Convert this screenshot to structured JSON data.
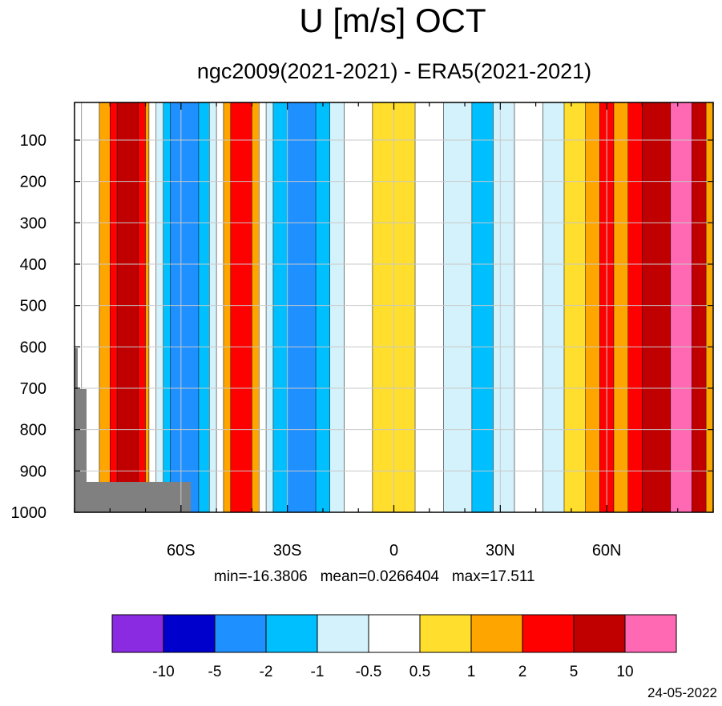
{
  "title": "U [m/s] OCT",
  "subtitle": "ngc2009(2021-2021) - ERA5(2021-2021)",
  "stats": {
    "min": "min=-16.3806",
    "mean": "mean=0.0266404",
    "max": "max=17.511"
  },
  "date": "24-05-2022",
  "chart_data": {
    "type": "heatmap",
    "title": "U [m/s] OCT",
    "subtitle": "ngc2009(2021-2021) - ERA5(2021-2021)",
    "y_axis": {
      "ticks": [
        100,
        200,
        300,
        400,
        500,
        600,
        700,
        800,
        900,
        1000
      ],
      "tick_labels": [
        "100",
        "200",
        "300",
        "400",
        "500",
        "600",
        "700",
        "800",
        "900",
        "1000"
      ],
      "range": [
        10,
        1000
      ],
      "reversed": true
    },
    "x_axis": {
      "ticks": [
        -60,
        -30,
        0,
        30,
        60
      ],
      "tick_labels": [
        "60S",
        "30S",
        "0",
        "30N",
        "60N"
      ],
      "range": [
        -90,
        90
      ]
    },
    "grid": true,
    "colorbar": {
      "levels": [
        -10,
        -5,
        -2,
        -1,
        -0.5,
        0.5,
        1,
        2,
        5,
        10
      ],
      "level_labels": [
        "-10",
        "-5",
        "-2",
        "-1",
        "-0.5",
        "0.5",
        "1",
        "2",
        "5",
        "10"
      ],
      "colors": [
        "#8a2be2",
        "#0000cd",
        "#1e90ff",
        "#00bfff",
        "#d4f2fb",
        "#ffffff",
        "#ffde2e",
        "#ffa500",
        "#ff0000",
        "#c00000",
        "#ff69b4"
      ]
    },
    "stats": {
      "min": -16.3806,
      "mean": 0.0266404,
      "max": 17.511
    },
    "bands": [
      {
        "lat": [
          -88,
          -83
        ],
        "value": 0.0
      },
      {
        "lat": [
          -83,
          -80
        ],
        "value": 1.5
      },
      {
        "lat": [
          -80,
          -78
        ],
        "value": 3.0
      },
      {
        "lat": [
          -78,
          -72
        ],
        "value": 7.5
      },
      {
        "lat": [
          -72,
          -70
        ],
        "value": 3.0
      },
      {
        "lat": [
          -70,
          -69
        ],
        "value": 1.5
      },
      {
        "lat": [
          -69,
          -67
        ],
        "value": 0.0
      },
      {
        "lat": [
          -67,
          -65
        ],
        "value": -0.7
      },
      {
        "lat": [
          -65,
          -63
        ],
        "value": -1.5
      },
      {
        "lat": [
          -63,
          -55
        ],
        "value": -3.5
      },
      {
        "lat": [
          -55,
          -52
        ],
        "value": -1.5
      },
      {
        "lat": [
          -52,
          -50
        ],
        "value": -0.7
      },
      {
        "lat": [
          -50,
          -48
        ],
        "value": 0.0
      },
      {
        "lat": [
          -48,
          -46
        ],
        "value": 1.5
      },
      {
        "lat": [
          -46,
          -40
        ],
        "value": 3.5
      },
      {
        "lat": [
          -40,
          -38
        ],
        "value": 1.5
      },
      {
        "lat": [
          -38,
          -36
        ],
        "value": 0.0
      },
      {
        "lat": [
          -36,
          -34
        ],
        "value": -0.7
      },
      {
        "lat": [
          -34,
          -30
        ],
        "value": -1.5
      },
      {
        "lat": [
          -30,
          -22
        ],
        "value": -3.0
      },
      {
        "lat": [
          -22,
          -18
        ],
        "value": -1.5
      },
      {
        "lat": [
          -18,
          -14
        ],
        "value": -0.7
      },
      {
        "lat": [
          -14,
          -6
        ],
        "value": 0.0
      },
      {
        "lat": [
          -6,
          6
        ],
        "value": 0.7
      },
      {
        "lat": [
          6,
          14
        ],
        "value": 0.0
      },
      {
        "lat": [
          14,
          22
        ],
        "value": -0.7
      },
      {
        "lat": [
          22,
          28
        ],
        "value": -1.5
      },
      {
        "lat": [
          28,
          34
        ],
        "value": -0.7
      },
      {
        "lat": [
          34,
          42
        ],
        "value": 0.0
      },
      {
        "lat": [
          42,
          48
        ],
        "value": -0.7
      },
      {
        "lat": [
          48,
          54
        ],
        "value": 0.7
      },
      {
        "lat": [
          54,
          58
        ],
        "value": 1.5
      },
      {
        "lat": [
          58,
          62
        ],
        "value": 3.0
      },
      {
        "lat": [
          62,
          66
        ],
        "value": 1.5
      },
      {
        "lat": [
          66,
          70
        ],
        "value": 3.5
      },
      {
        "lat": [
          70,
          78
        ],
        "value": 7.5
      },
      {
        "lat": [
          78,
          84
        ],
        "value": 11.0
      },
      {
        "lat": [
          84,
          88
        ],
        "value": 7.5
      },
      {
        "lat": [
          88,
          90
        ],
        "value": 1.5
      }
    ]
  }
}
